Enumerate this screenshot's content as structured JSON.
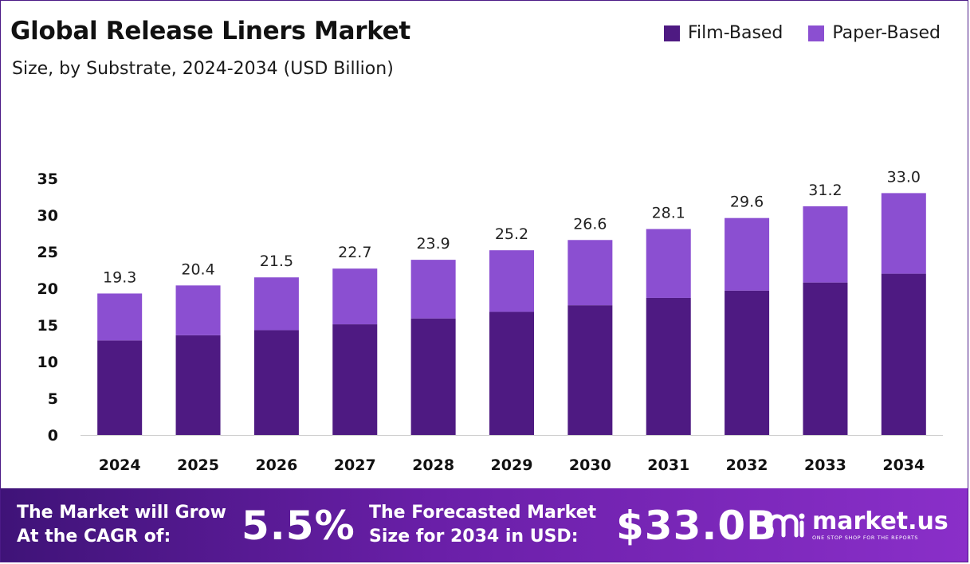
{
  "header": {
    "title": "Global Release Liners Market",
    "subtitle": "Size, by Substrate, 2024-2034 (USD Billion)"
  },
  "legend": [
    {
      "label": "Film-Based",
      "color": "#4e1a82"
    },
    {
      "label": "Paper-Based",
      "color": "#8b4fd1"
    }
  ],
  "chart_data": {
    "type": "bar",
    "stacked": true,
    "categories": [
      "2024",
      "2025",
      "2026",
      "2027",
      "2028",
      "2029",
      "2030",
      "2031",
      "2032",
      "2033",
      "2034"
    ],
    "series": [
      {
        "name": "Film-Based",
        "color": "#4e1a82",
        "values": [
          12.9,
          13.6,
          14.3,
          15.1,
          15.9,
          16.8,
          17.7,
          18.7,
          19.7,
          20.8,
          22.0
        ]
      },
      {
        "name": "Paper-Based",
        "color": "#8b4fd1",
        "values": [
          6.4,
          6.8,
          7.2,
          7.6,
          8.0,
          8.4,
          8.9,
          9.4,
          9.9,
          10.4,
          11.0
        ]
      }
    ],
    "totals": [
      "19.3",
      "20.4",
      "21.5",
      "22.7",
      "23.9",
      "25.2",
      "26.6",
      "28.1",
      "29.6",
      "31.2",
      "33.0"
    ],
    "yticks": [
      0,
      5,
      10,
      15,
      20,
      25,
      30,
      35
    ],
    "ylim": [
      0,
      35
    ],
    "grid": false,
    "legend_position": "top-right"
  },
  "banner": {
    "cagr_line1": "The Market will Grow",
    "cagr_line2": "At the CAGR of:",
    "cagr_value": "5.5%",
    "forecast_line1": "The Forecasted Market",
    "forecast_line2": "Size for 2034 in USD:",
    "forecast_value": "$33.0B",
    "brand_name": "market.us",
    "brand_tagline": "ONE STOP SHOP FOR THE REPORTS"
  }
}
